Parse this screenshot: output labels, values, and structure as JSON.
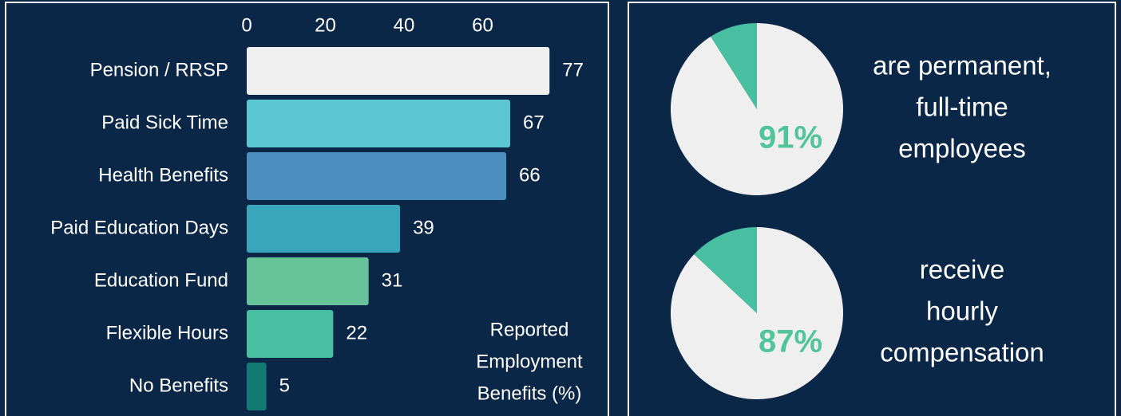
{
  "chart_data": [
    {
      "type": "bar",
      "categories": [
        "Pension / RRSP",
        "Paid Sick Time",
        "Health Benefits",
        "Paid Education Days",
        "Education Fund",
        "Flexible Hours",
        "No Benefits"
      ],
      "values": [
        77,
        67,
        66,
        39,
        31,
        22,
        5
      ],
      "colors": [
        "#efefef",
        "#5bc7d2",
        "#4b8fbf",
        "#3aa6bb",
        "#67c49a",
        "#48bfa0",
        "#137a73"
      ],
      "xlim": [
        0,
        80
      ],
      "xticks": [
        0,
        20,
        40,
        60
      ],
      "xlabel_lines": [
        "Reported",
        "Employment",
        "Benefits (%)"
      ]
    },
    {
      "type": "pie",
      "values": [
        91,
        9
      ],
      "value_labels": [
        "91%",
        null
      ],
      "colors": [
        "#efefef",
        "#48bfa0"
      ],
      "label_color": "#52c49c",
      "caption_lines": [
        "are permanent,",
        "full-time",
        "employees"
      ]
    },
    {
      "type": "pie",
      "values": [
        87,
        13
      ],
      "value_labels": [
        "87%",
        null
      ],
      "colors": [
        "#efefef",
        "#48bfa0"
      ],
      "label_color": "#52c49c",
      "caption_lines": [
        "receive",
        "hourly",
        "compensation"
      ]
    }
  ]
}
